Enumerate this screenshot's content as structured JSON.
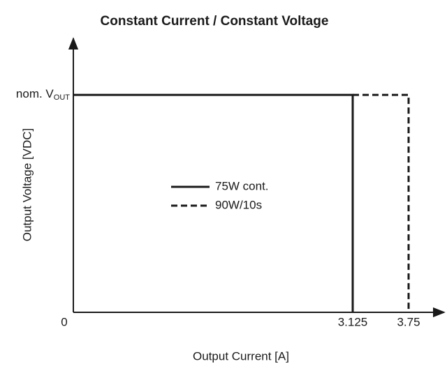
{
  "chart_data": {
    "type": "line",
    "title": "Constant Current / Constant Voltage",
    "xlabel": "Output Current [A]",
    "ylabel": "Output Voltage [VDC]",
    "xlim": [
      0,
      4.1
    ],
    "ylim": [
      0,
      1.26
    ],
    "xticks": [
      0,
      3.125,
      3.75
    ],
    "yticks": [
      {
        "value": 1,
        "label": "nom. V"
      }
    ],
    "ytick_subscript": "OUT",
    "legend": "center",
    "series": [
      {
        "name": "75W cont.",
        "color": "#1a1a1a",
        "style": "solid",
        "x": [
          0,
          3.125,
          3.125
        ],
        "values": [
          1,
          1,
          0
        ]
      },
      {
        "name": "90W/10s",
        "color": "#1a1a1a",
        "style": "dashed",
        "x": [
          3.125,
          3.75,
          3.75
        ],
        "values": [
          1,
          1,
          0
        ]
      }
    ]
  }
}
